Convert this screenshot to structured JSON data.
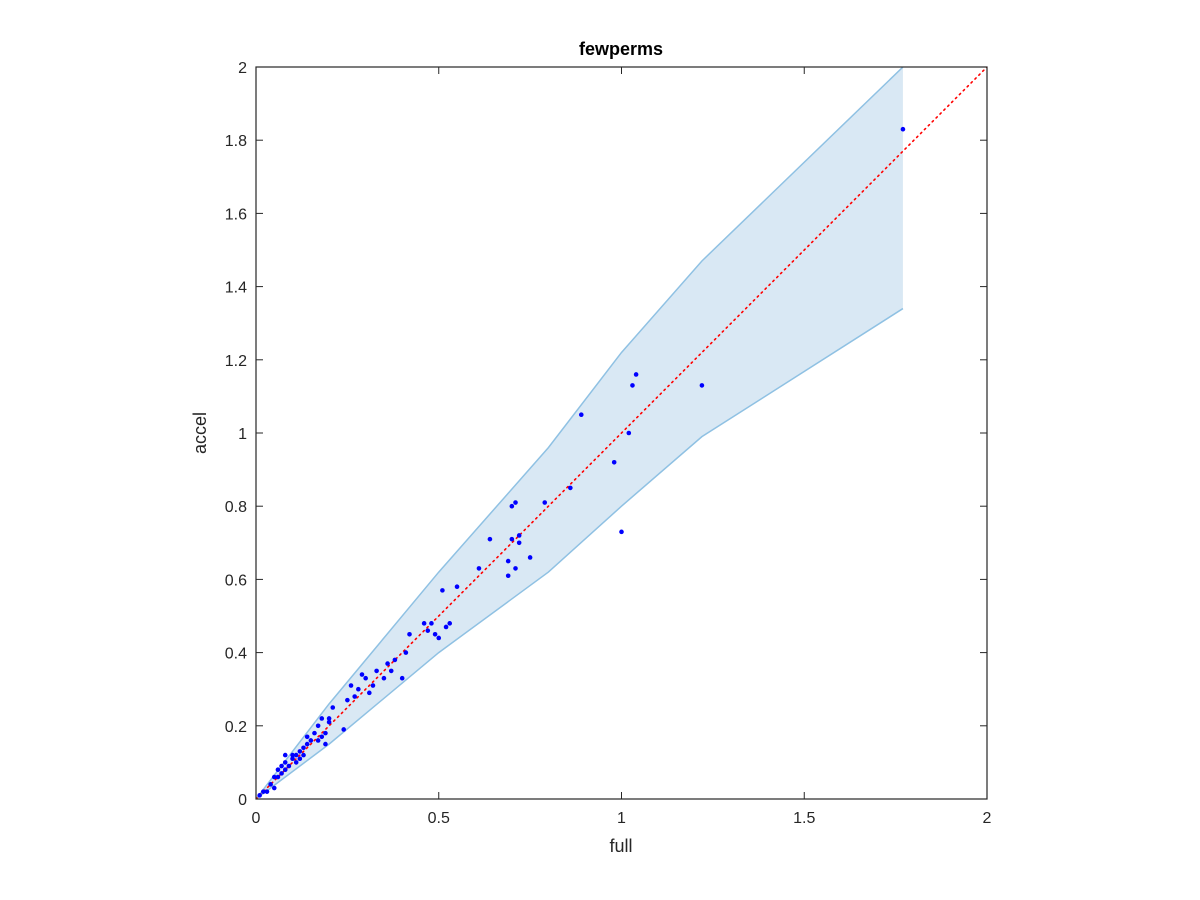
{
  "chart_data": {
    "type": "scatter",
    "title": "fewperms",
    "xlabel": "full",
    "ylabel": "accel",
    "xlim": [
      0,
      2
    ],
    "ylim": [
      0,
      2
    ],
    "xticks": [
      0,
      0.5,
      1,
      1.5,
      2
    ],
    "xtick_labels": [
      "0",
      "0.5",
      "1",
      "1.5",
      "2"
    ],
    "yticks": [
      0,
      0.2,
      0.4,
      0.6,
      0.8,
      1,
      1.2,
      1.4,
      1.6,
      1.8,
      2
    ],
    "ytick_labels": [
      "0",
      "0.2",
      "0.4",
      "0.6",
      "0.8",
      "1",
      "1.2",
      "1.4",
      "1.6",
      "1.8",
      "2"
    ],
    "grid": false,
    "colors": {
      "points": "#0000ff",
      "band_fill": "#d9e8f4",
      "band_edge": "#8fc1e3",
      "reference_line": "#ff0000"
    },
    "reference_line": {
      "x": [
        0,
        2
      ],
      "y": [
        0,
        2
      ],
      "style": "dotted"
    },
    "band": {
      "x": [
        0,
        0.2,
        0.5,
        0.8,
        1.0,
        1.22,
        1.77
      ],
      "upper": [
        0,
        0.26,
        0.62,
        0.96,
        1.22,
        1.47,
        2.0
      ],
      "lower": [
        0,
        0.15,
        0.4,
        0.62,
        0.8,
        0.99,
        1.34
      ]
    },
    "points": {
      "x": [
        0.01,
        0.02,
        0.03,
        0.04,
        0.05,
        0.05,
        0.06,
        0.06,
        0.07,
        0.07,
        0.08,
        0.08,
        0.08,
        0.09,
        0.1,
        0.1,
        0.11,
        0.11,
        0.12,
        0.12,
        0.13,
        0.13,
        0.14,
        0.14,
        0.15,
        0.16,
        0.17,
        0.17,
        0.18,
        0.18,
        0.19,
        0.19,
        0.2,
        0.2,
        0.21,
        0.24,
        0.25,
        0.26,
        0.27,
        0.28,
        0.29,
        0.3,
        0.31,
        0.32,
        0.33,
        0.35,
        0.36,
        0.37,
        0.38,
        0.4,
        0.41,
        0.42,
        0.46,
        0.47,
        0.48,
        0.49,
        0.5,
        0.51,
        0.52,
        0.53,
        0.55,
        0.61,
        0.64,
        0.69,
        0.69,
        0.7,
        0.7,
        0.71,
        0.71,
        0.72,
        0.72,
        0.75,
        0.79,
        0.86,
        0.89,
        0.98,
        1.0,
        1.02,
        1.03,
        1.04,
        1.22,
        1.77
      ],
      "y": [
        0.01,
        0.02,
        0.02,
        0.04,
        0.03,
        0.06,
        0.06,
        0.08,
        0.07,
        0.09,
        0.08,
        0.1,
        0.12,
        0.09,
        0.11,
        0.12,
        0.1,
        0.12,
        0.11,
        0.13,
        0.12,
        0.14,
        0.15,
        0.17,
        0.16,
        0.18,
        0.16,
        0.2,
        0.17,
        0.22,
        0.15,
        0.18,
        0.21,
        0.22,
        0.25,
        0.19,
        0.27,
        0.31,
        0.28,
        0.3,
        0.34,
        0.33,
        0.29,
        0.31,
        0.35,
        0.33,
        0.37,
        0.35,
        0.38,
        0.33,
        0.4,
        0.45,
        0.48,
        0.46,
        0.48,
        0.45,
        0.44,
        0.57,
        0.47,
        0.48,
        0.58,
        0.63,
        0.71,
        0.61,
        0.65,
        0.71,
        0.8,
        0.63,
        0.81,
        0.72,
        0.7,
        0.66,
        0.81,
        0.85,
        1.05,
        0.92,
        0.73,
        1.0,
        1.13,
        1.16,
        1.13,
        1.83
      ]
    }
  }
}
